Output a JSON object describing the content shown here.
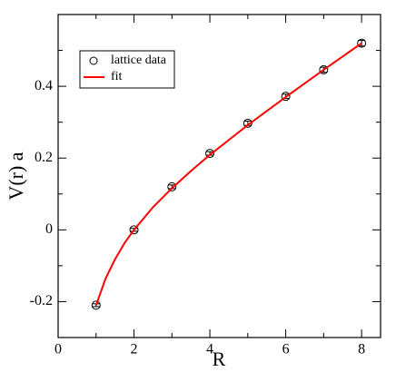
{
  "chart_data": {
    "type": "scatter",
    "xlabel": "R",
    "ylabel": "V(r) a",
    "xlim": [
      0,
      8.5
    ],
    "ylim": [
      -0.3,
      0.6
    ],
    "xticks": [
      0,
      2,
      4,
      6,
      8
    ],
    "yticks": [
      -0.2,
      0,
      0.2,
      0.4
    ],
    "xminorticks": [
      1,
      3,
      5,
      7
    ],
    "yminorticks": [
      -0.3,
      -0.1,
      0.1,
      0.3,
      0.5
    ],
    "series": [
      {
        "name": "lattice data",
        "mode": "markers",
        "color": "#000000",
        "x": [
          1,
          2,
          3,
          4,
          5,
          6,
          7,
          8
        ],
        "values": [
          -0.21,
          0.0,
          0.12,
          0.213,
          0.297,
          0.372,
          0.446,
          0.52
        ],
        "errors": [
          0.004,
          0.004,
          0.005,
          0.005,
          0.006,
          0.006,
          0.007,
          0.008
        ]
      },
      {
        "name": "fit",
        "mode": "line",
        "color": "#ff0000",
        "x": [
          1,
          1.25,
          1.5,
          1.75,
          2,
          2.5,
          3,
          3.5,
          4,
          5,
          6,
          7,
          8
        ],
        "values": [
          -0.21,
          -0.136,
          -0.082,
          -0.037,
          0.0,
          0.063,
          0.116,
          0.164,
          0.209,
          0.292,
          0.37,
          0.446,
          0.52
        ]
      }
    ]
  }
}
